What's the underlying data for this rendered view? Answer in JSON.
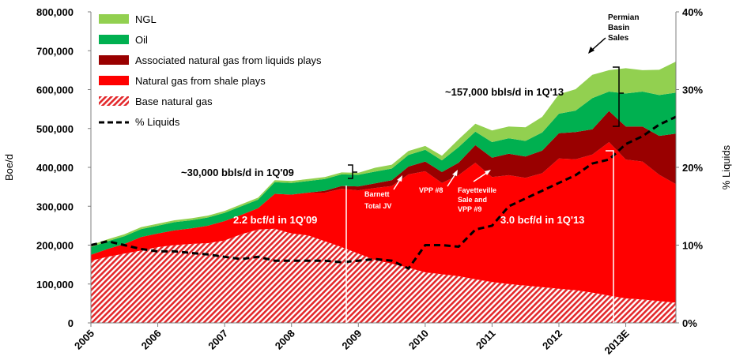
{
  "chart_data": {
    "type": "area",
    "title": "",
    "ylabel_left": "Boe/d",
    "ylabel_right": "% Liquids",
    "ylim_left": [
      0,
      800000
    ],
    "ylim_right": [
      0,
      40
    ],
    "y_ticks_left": [
      "0",
      "100,000",
      "200,000",
      "300,000",
      "400,000",
      "500,000",
      "600,000",
      "700,000",
      "800,000"
    ],
    "y_ticks_right": [
      "0%",
      "10%",
      "20%",
      "30%",
      "40%"
    ],
    "x_tick_labels": [
      "2005",
      "2006",
      "2007",
      "2008",
      "2009",
      "2010",
      "2011",
      "2012",
      "2013E"
    ],
    "x": [
      2005.0,
      2005.25,
      2005.5,
      2005.75,
      2006.0,
      2006.25,
      2006.5,
      2006.75,
      2007.0,
      2007.25,
      2007.5,
      2007.75,
      2008.0,
      2008.25,
      2008.5,
      2008.75,
      2009.0,
      2009.25,
      2009.5,
      2009.75,
      2010.0,
      2010.25,
      2010.5,
      2010.75,
      2011.0,
      2011.25,
      2011.5,
      2011.75,
      2012.0,
      2012.25,
      2012.5,
      2012.75,
      2013.0,
      2013.25,
      2013.5,
      2013.75
    ],
    "series": [
      {
        "name": "Base natural gas",
        "values": [
          160000,
          170000,
          178000,
          186000,
          195000,
          200000,
          203000,
          205000,
          212000,
          228000,
          240000,
          242000,
          230000,
          225000,
          210000,
          195000,
          178000,
          162000,
          152000,
          142000,
          130000,
          125000,
          120000,
          112000,
          105000,
          100000,
          96000,
          92000,
          88000,
          84000,
          78000,
          70000,
          63000,
          60000,
          56000,
          52000
        ]
      },
      {
        "name": "Natural gas from shale plays",
        "values": [
          15000,
          20000,
          25000,
          35000,
          35000,
          38000,
          40000,
          45000,
          50000,
          50000,
          55000,
          90000,
          100000,
          110000,
          125000,
          150000,
          163000,
          185000,
          200000,
          240000,
          260000,
          235000,
          260000,
          300000,
          270000,
          280000,
          277000,
          293000,
          335000,
          337000,
          355000,
          395000,
          357000,
          355000,
          325000,
          305000
        ]
      },
      {
        "name": "Associated natural gas from liquids plays",
        "values": [
          0,
          0,
          0,
          0,
          0,
          0,
          0,
          0,
          0,
          0,
          0,
          0,
          0,
          0,
          5000,
          7000,
          10000,
          12000,
          15000,
          20000,
          25000,
          28000,
          32000,
          45000,
          50000,
          55000,
          55000,
          58000,
          65000,
          70000,
          65000,
          80000,
          85000,
          90000,
          100000,
          130000
        ]
      },
      {
        "name": "Oil",
        "values": [
          20000,
          20000,
          20000,
          20000,
          20000,
          21000,
          21000,
          21000,
          21000,
          22000,
          22000,
          30000,
          30000,
          30000,
          30000,
          30000,
          30000,
          30000,
          30000,
          30000,
          30000,
          30000,
          40000,
          35000,
          40000,
          40000,
          40000,
          47000,
          50000,
          55000,
          80000,
          50000,
          85000,
          90000,
          105000,
          105000
        ]
      },
      {
        "name": "NGL",
        "values": [
          5000,
          5000,
          5000,
          5000,
          5000,
          5000,
          5000,
          5000,
          5000,
          5000,
          5000,
          5000,
          5000,
          5000,
          5000,
          5000,
          5000,
          10000,
          10000,
          10000,
          10000,
          12000,
          20000,
          20000,
          30000,
          30000,
          35000,
          40000,
          50000,
          55000,
          60000,
          55000,
          65000,
          55000,
          65000,
          80000
        ]
      }
    ],
    "liquids_pct": {
      "name": "% Liquids",
      "values": [
        10,
        10.5,
        10,
        9.5,
        9.2,
        9.2,
        9.0,
        8.8,
        8.5,
        8.2,
        8.5,
        8.0,
        8.0,
        8.0,
        8.0,
        7.8,
        8.0,
        8.2,
        8.0,
        7.0,
        10.0,
        10.0,
        9.8,
        12.0,
        12.5,
        15.0,
        16.0,
        17.0,
        18.0,
        19.0,
        20.5,
        21.0,
        23.0,
        24.0,
        25.5,
        26.5
      ]
    },
    "legend_position": "top-left",
    "annotations": {
      "bbls_2009": "~30,000 bbls/d in 1Q'09",
      "bbls_2013": "~157,000 bbls/d in 1Q'13",
      "bcf_2009": "2.2 bcf/d in 1Q'09",
      "bcf_2013": "3.0 bcf/d in 1Q'13",
      "barnett": [
        "Barnett",
        "Total JV"
      ],
      "vpp8": "VPP #8",
      "fayetteville": [
        "Fayetteville",
        "Sale and",
        "VPP #9"
      ],
      "permian": [
        "Permian",
        "Basin",
        "Sales"
      ]
    }
  },
  "colors": {
    "ngl": "#92d050",
    "oil": "#00b050",
    "associated": "#990000",
    "shale": "#ff0000",
    "base": "#e8302f",
    "base_hatch_bg": "#ffffff"
  }
}
